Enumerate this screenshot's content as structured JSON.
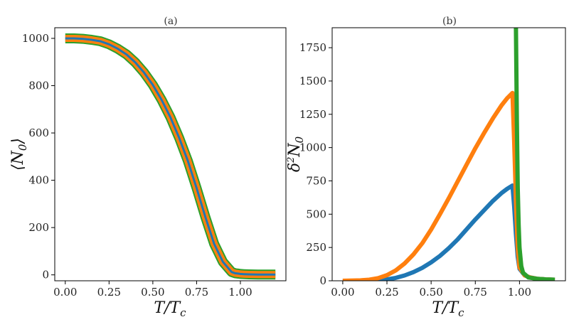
{
  "chart_data": [
    {
      "type": "line",
      "title": "(a)",
      "xlabel": "T/T_c",
      "ylabel": "⟨N_0⟩",
      "xlim": [
        -0.06,
        1.26
      ],
      "ylim": [
        -25,
        1045
      ],
      "xticks": [
        0.0,
        0.25,
        0.5,
        0.75,
        1.0
      ],
      "xtick_labels": [
        "0.00",
        "0.25",
        "0.50",
        "0.75",
        "1.00"
      ],
      "yticks": [
        0,
        200,
        400,
        600,
        800,
        1000
      ],
      "ytick_labels": [
        "0",
        "200",
        "400",
        "600",
        "800",
        "1000"
      ],
      "series": [
        {
          "color": "#2ca02c",
          "x": [
            0.0,
            0.05,
            0.1,
            0.15,
            0.2,
            0.25,
            0.3,
            0.35,
            0.4,
            0.45,
            0.5,
            0.55,
            0.6,
            0.65,
            0.7,
            0.75,
            0.8,
            0.85,
            0.9,
            0.95,
            0.97,
            0.99,
            1.0,
            1.02,
            1.05,
            1.1,
            1.15,
            1.2
          ],
          "y": [
            1000,
            1000,
            998,
            994,
            988,
            975,
            956,
            932,
            898,
            855,
            803,
            740,
            667,
            580,
            482,
            367,
            245,
            131,
            55,
            12,
            7,
            5,
            4,
            3,
            2,
            1,
            1,
            1
          ]
        },
        {
          "color": "#ff7f0e",
          "x": [
            0.0,
            0.05,
            0.1,
            0.15,
            0.2,
            0.25,
            0.3,
            0.35,
            0.4,
            0.45,
            0.5,
            0.55,
            0.6,
            0.65,
            0.7,
            0.75,
            0.8,
            0.85,
            0.9,
            0.95,
            0.97,
            0.99,
            1.0,
            1.02,
            1.05,
            1.1,
            1.15,
            1.2
          ],
          "y": [
            1000,
            1000,
            998,
            994,
            988,
            975,
            956,
            932,
            898,
            855,
            803,
            740,
            667,
            580,
            482,
            367,
            245,
            131,
            55,
            12,
            7,
            5,
            4,
            3,
            2,
            1,
            1,
            1
          ]
        },
        {
          "color": "#1f77b4",
          "x": [
            0.0,
            0.05,
            0.1,
            0.15,
            0.2,
            0.25,
            0.3,
            0.35,
            0.4,
            0.45,
            0.5,
            0.55,
            0.6,
            0.65,
            0.7,
            0.75,
            0.8,
            0.85,
            0.9,
            0.95,
            0.97,
            0.99,
            1.0,
            1.02,
            1.05,
            1.1,
            1.15,
            1.2
          ],
          "y": [
            1000,
            1000,
            998,
            994,
            988,
            975,
            956,
            932,
            898,
            855,
            803,
            740,
            667,
            580,
            482,
            367,
            245,
            131,
            55,
            12,
            7,
            5,
            4,
            3,
            2,
            1,
            1,
            1
          ]
        }
      ]
    },
    {
      "type": "line",
      "title": "(b)",
      "xlabel": "T/T_c",
      "ylabel": "δ²N_0",
      "xlim": [
        -0.06,
        1.26
      ],
      "ylim": [
        0,
        1900
      ],
      "xticks": [
        0.0,
        0.25,
        0.5,
        0.75,
        1.0
      ],
      "xtick_labels": [
        "0.00",
        "0.25",
        "0.50",
        "0.75",
        "1.00"
      ],
      "yticks": [
        0,
        250,
        500,
        750,
        1000,
        1250,
        1500,
        1750
      ],
      "ytick_labels": [
        "0",
        "250",
        "500",
        "750",
        "1000",
        "1250",
        "1500",
        "1750"
      ],
      "series": [
        {
          "color": "#1f77b4",
          "x": [
            0.0,
            0.1,
            0.2,
            0.25,
            0.3,
            0.35,
            0.4,
            0.45,
            0.5,
            0.55,
            0.6,
            0.65,
            0.7,
            0.75,
            0.8,
            0.85,
            0.9,
            0.93,
            0.96,
            0.97,
            0.98,
            0.99,
            1.0,
            1.03,
            1.06,
            1.1,
            1.15,
            1.2
          ],
          "y": [
            0,
            0,
            3,
            10,
            22,
            40,
            65,
            97,
            138,
            187,
            245,
            310,
            385,
            460,
            530,
            600,
            660,
            690,
            715,
            560,
            350,
            180,
            90,
            40,
            25,
            15,
            10,
            8
          ]
        },
        {
          "color": "#ff7f0e",
          "x": [
            0.0,
            0.1,
            0.15,
            0.2,
            0.25,
            0.3,
            0.35,
            0.4,
            0.45,
            0.5,
            0.55,
            0.6,
            0.65,
            0.7,
            0.75,
            0.8,
            0.85,
            0.9,
            0.93,
            0.96,
            0.97,
            0.98,
            0.99,
            1.0,
            1.03,
            1.06,
            1.1,
            1.15,
            1.2
          ],
          "y": [
            0,
            3,
            8,
            20,
            42,
            78,
            130,
            198,
            282,
            385,
            500,
            620,
            745,
            870,
            995,
            1110,
            1220,
            1320,
            1370,
            1410,
            1050,
            600,
            250,
            100,
            40,
            25,
            15,
            10,
            8
          ]
        },
        {
          "color": "#2ca02c",
          "x": [
            0.98,
            0.985,
            0.99,
            0.995,
            1.0,
            1.01,
            1.02,
            1.05,
            1.1,
            1.15,
            1.2
          ],
          "y": [
            1900,
            1200,
            700,
            420,
            250,
            110,
            60,
            25,
            15,
            10,
            8
          ]
        }
      ]
    }
  ]
}
